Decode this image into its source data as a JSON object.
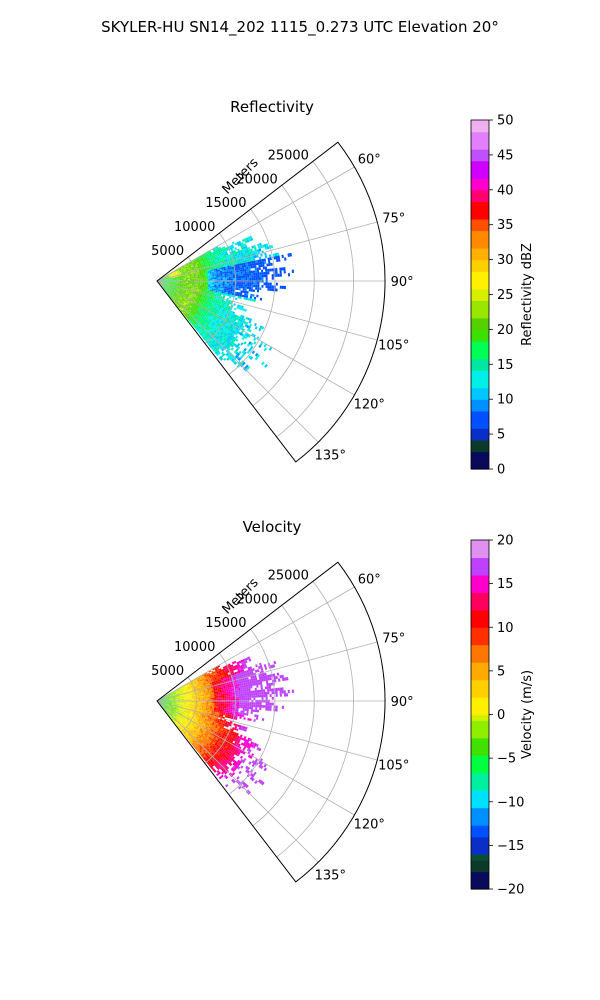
{
  "suptitle": "SKYLER-HU  SN14_202  1115_0.273 UTC Elevation 20°",
  "chart_data": [
    {
      "type": "heatmap",
      "projection": "polar-sector",
      "title": "Reflectivity",
      "range_label": "Meters",
      "theta_range_deg": [
        52.5,
        142.5
      ],
      "radial_ticks": [
        5000,
        10000,
        15000,
        20000,
        25000
      ],
      "radial_tick_labels": [
        "5000",
        "10000",
        "15000",
        "20000",
        "25000"
      ],
      "r_max": 29000,
      "angle_ticks": [
        60,
        75,
        90,
        105,
        120,
        135
      ],
      "angle_tick_labels": [
        "60°",
        "75°",
        "90°",
        "105°",
        "120°",
        "135°"
      ],
      "grid": true,
      "data_extent": {
        "theta_deg": [
          60,
          140
        ],
        "r_max": 18000
      },
      "colorbar": {
        "label": "Reflectivity dBZ",
        "vmin": 0,
        "vmax": 50,
        "ticks": [
          0,
          5,
          10,
          15,
          20,
          25,
          30,
          35,
          40,
          45,
          50
        ],
        "tick_labels": [
          "0",
          "5",
          "10",
          "15",
          "20",
          "25",
          "30",
          "35",
          "40",
          "45",
          "50"
        ]
      },
      "field_key": "refl"
    },
    {
      "type": "heatmap",
      "projection": "polar-sector",
      "title": "Velocity",
      "range_label": "Meters",
      "theta_range_deg": [
        52.5,
        142.5
      ],
      "radial_ticks": [
        5000,
        10000,
        15000,
        20000,
        25000
      ],
      "radial_tick_labels": [
        "5000",
        "10000",
        "15000",
        "20000",
        "25000"
      ],
      "r_max": 29000,
      "angle_ticks": [
        60,
        75,
        90,
        105,
        120,
        135
      ],
      "angle_tick_labels": [
        "60°",
        "75°",
        "90°",
        "105°",
        "120°",
        "135°"
      ],
      "grid": true,
      "data_extent": {
        "theta_deg": [
          60,
          140
        ],
        "r_max": 18000
      },
      "colorbar": {
        "label": "Velocity (m/s)",
        "vmin": -20,
        "vmax": 20,
        "ticks": [
          -20,
          -15,
          -10,
          -5,
          0,
          5,
          10,
          15,
          20
        ],
        "tick_labels": [
          "−20",
          "−15",
          "−10",
          "−5",
          "0",
          "5",
          "10",
          "15",
          "20"
        ]
      },
      "field_key": "vel"
    }
  ]
}
